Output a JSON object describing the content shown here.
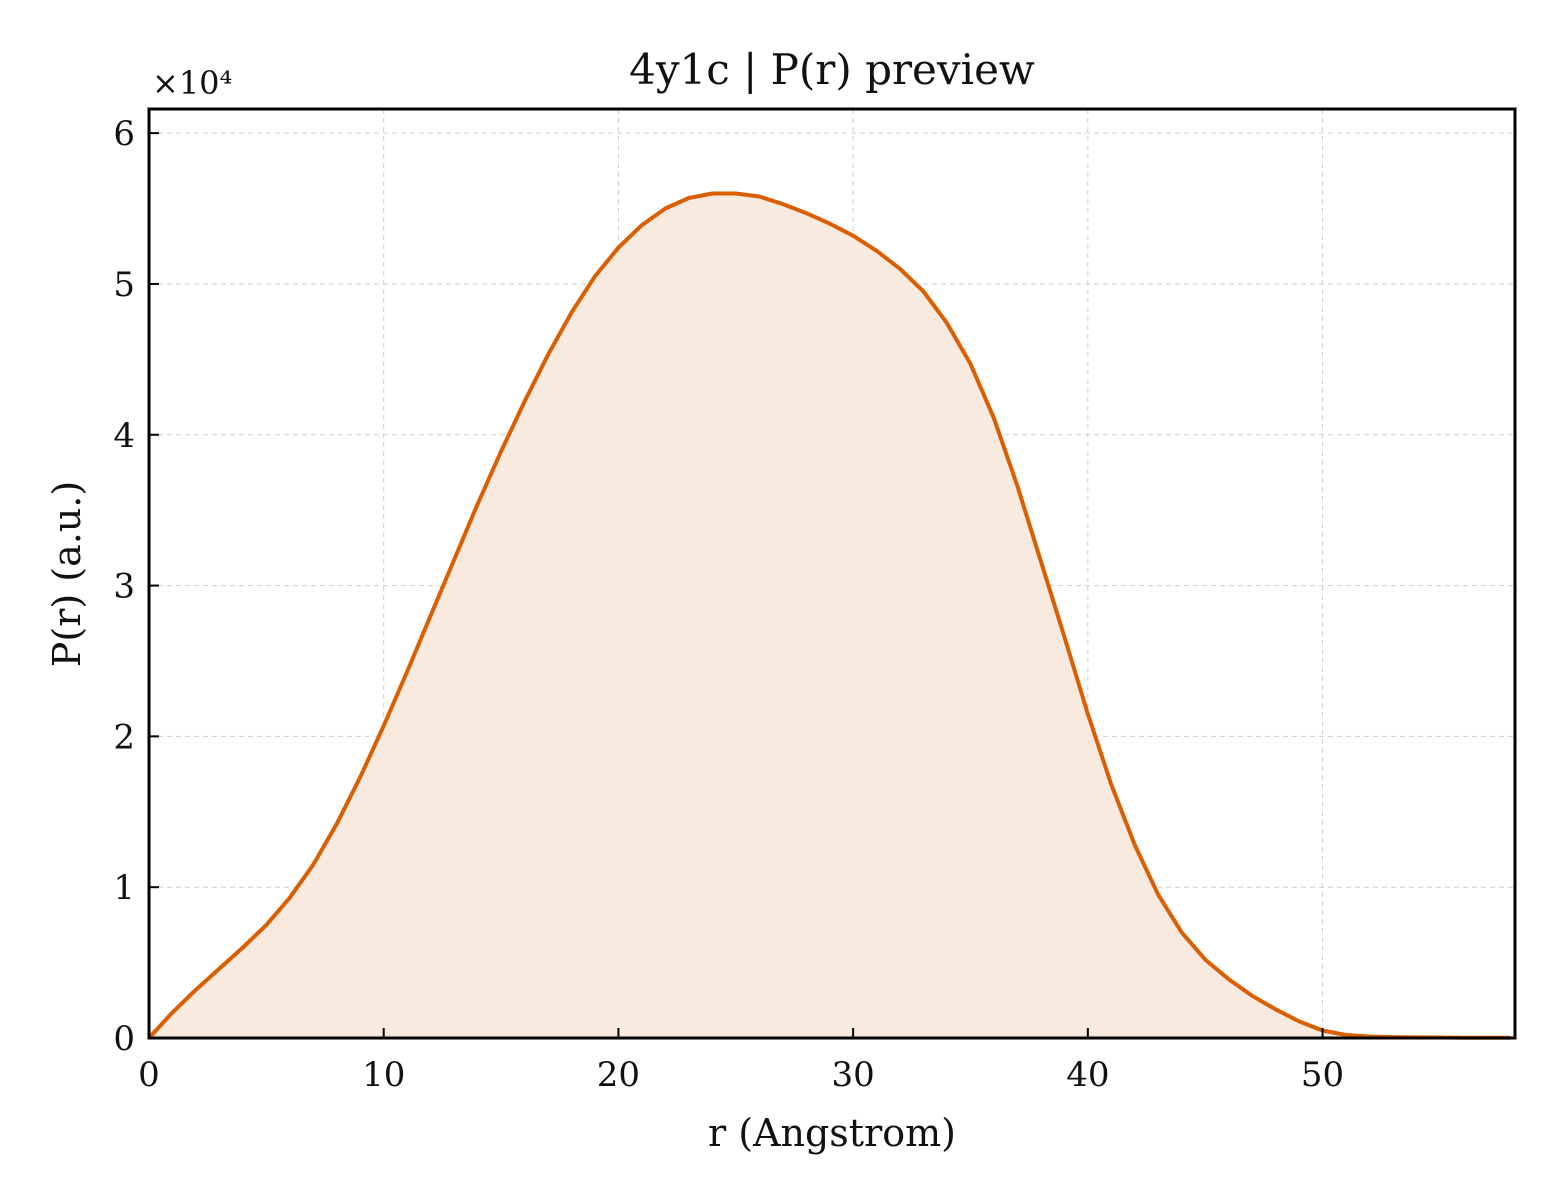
{
  "chart_data": {
    "type": "area",
    "title": "4y1c | P(r) preview",
    "xlabel": "r (Angstrom)",
    "ylabel": "P(r) (a.u.)",
    "y_scale_label": "×10⁴",
    "xlim": [
      0,
      58.2
    ],
    "ylim": [
      0,
      61600
    ],
    "x_ticks": [
      0,
      10,
      20,
      30,
      40,
      50
    ],
    "y_ticks": [
      0,
      10000,
      20000,
      30000,
      40000,
      50000,
      60000
    ],
    "x_tick_labels": [
      "0",
      "10",
      "20",
      "30",
      "40",
      "50"
    ],
    "y_tick_labels": [
      "0",
      "1",
      "2",
      "3",
      "4",
      "5",
      "6"
    ],
    "grid": true,
    "colors": {
      "line": "#d95f02",
      "fill": "#f8eadf"
    },
    "series": [
      {
        "x": [
          0,
          1,
          2,
          3,
          4,
          5,
          6,
          7,
          8,
          9,
          10,
          11,
          12,
          13,
          14,
          15,
          16,
          17,
          18,
          19,
          20,
          21,
          22,
          23,
          24,
          25,
          26,
          27,
          28,
          29,
          30,
          31,
          32,
          33,
          34,
          35,
          36,
          37,
          38,
          39,
          40,
          41,
          42,
          43,
          44,
          45,
          46,
          47,
          48,
          49,
          50,
          51,
          52,
          53,
          54,
          55,
          56,
          57,
          58
        ],
        "y": [
          0,
          1700,
          3200,
          4600,
          6000,
          7500,
          9300,
          11500,
          14200,
          17300,
          20700,
          24300,
          28000,
          31700,
          35400,
          38900,
          42200,
          45300,
          48100,
          50500,
          52400,
          53900,
          55000,
          55700,
          56000,
          56000,
          55800,
          55300,
          54700,
          54000,
          53200,
          52200,
          51000,
          49500,
          47400,
          44700,
          41100,
          36600,
          31600,
          26600,
          21500,
          16800,
          12800,
          9500,
          7000,
          5200,
          3900,
          2800,
          1900,
          1100,
          500,
          200,
          100,
          60,
          40,
          30,
          20,
          15,
          10
        ]
      }
    ]
  }
}
